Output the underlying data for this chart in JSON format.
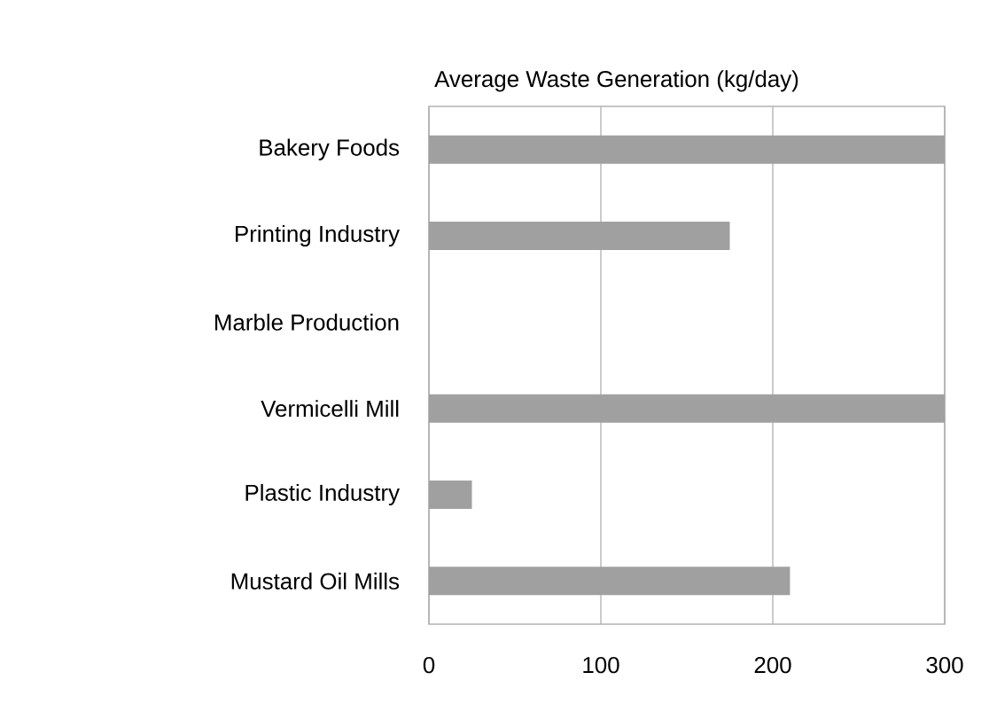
{
  "chart_data": {
    "type": "bar",
    "orientation": "horizontal",
    "title": "Average Waste Generation (kg/day)",
    "categories": [
      "Bakery Foods",
      "Printing Industry",
      "Marble Production",
      "Vermicelli Mill",
      "Plastic Industry",
      "Mustard Oil Mills"
    ],
    "values": [
      300,
      175,
      0,
      300,
      25,
      210
    ],
    "color": "#a0a0a0",
    "xlim": [
      0,
      300
    ],
    "xticks": [
      0,
      100,
      200,
      300
    ],
    "grid": "x"
  }
}
